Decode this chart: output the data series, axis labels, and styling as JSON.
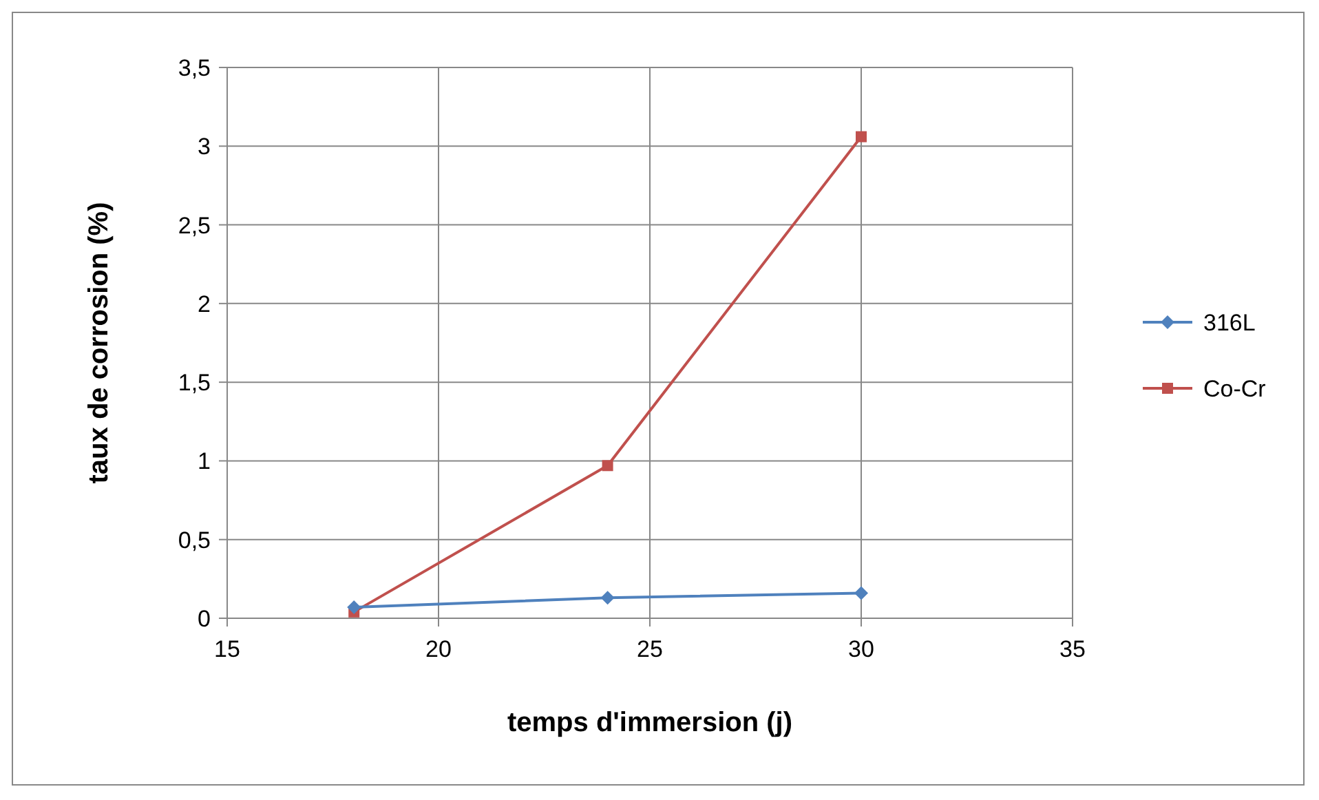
{
  "chart_data": {
    "type": "line",
    "xlabel": "temps d'immersion (j)",
    "ylabel": "taux de corrosion (%)",
    "x": [
      18,
      24,
      30
    ],
    "series": [
      {
        "name": "316L",
        "color": "#4f81bd",
        "values": [
          0.07,
          0.13,
          0.16
        ],
        "marker": "diamond"
      },
      {
        "name": "Co-Cr",
        "color": "#c0504d",
        "values": [
          0.04,
          0.97,
          3.06
        ],
        "marker": "square"
      }
    ],
    "xlim": [
      15,
      35
    ],
    "xticks": [
      15,
      20,
      25,
      30,
      35
    ],
    "ylim": [
      0,
      3.5
    ],
    "yticks": [
      {
        "value": 0,
        "label": "0"
      },
      {
        "value": 0.5,
        "label": "0,5"
      },
      {
        "value": 1,
        "label": "1"
      },
      {
        "value": 1.5,
        "label": "1,5"
      },
      {
        "value": 2,
        "label": "2"
      },
      {
        "value": 2.5,
        "label": "2,5"
      },
      {
        "value": 3,
        "label": "3"
      },
      {
        "value": 3.5,
        "label": "3,5"
      }
    ],
    "grid": true,
    "legend": "right"
  }
}
